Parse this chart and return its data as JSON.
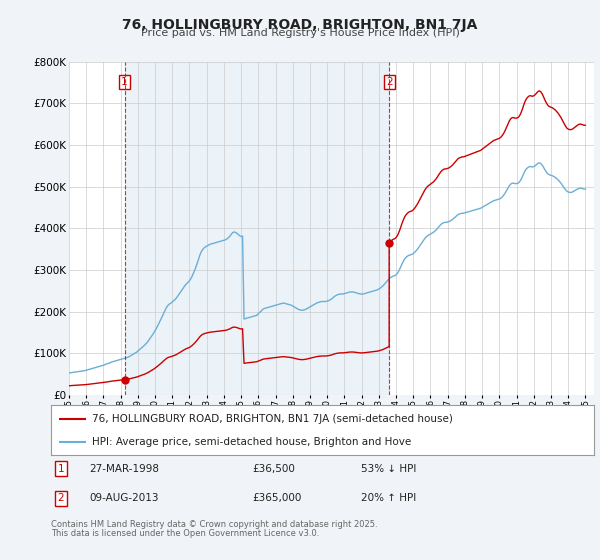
{
  "title": "76, HOLLINGBURY ROAD, BRIGHTON, BN1 7JA",
  "subtitle": "Price paid vs. HM Land Registry's House Price Index (HPI)",
  "legend_line1": "76, HOLLINGBURY ROAD, BRIGHTON, BN1 7JA (semi-detached house)",
  "legend_line2": "HPI: Average price, semi-detached house, Brighton and Hove",
  "footer1": "Contains HM Land Registry data © Crown copyright and database right 2025.",
  "footer2": "This data is licensed under the Open Government Licence v3.0.",
  "sale1_date": "27-MAR-1998",
  "sale1_price": "£36,500",
  "sale1_hpi": "53% ↓ HPI",
  "sale2_date": "09-AUG-2013",
  "sale2_price": "£365,000",
  "sale2_hpi": "20% ↑ HPI",
  "sale1_x": 1998.23,
  "sale1_y": 36500,
  "sale2_x": 2013.6,
  "sale2_y": 365000,
  "hpi_color": "#6baed6",
  "hpi_fill_color": "#ddeeff",
  "price_color": "#cc0000",
  "background_color": "#f0f4f8",
  "plot_background": "#ffffff",
  "grid_color": "#cccccc",
  "shade_color": "#deeaf4",
  "ylim": [
    0,
    800000
  ],
  "xlim": [
    1995,
    2025.5
  ],
  "hpi_x": [
    1995.0,
    1995.083,
    1995.167,
    1995.25,
    1995.333,
    1995.417,
    1995.5,
    1995.583,
    1995.667,
    1995.75,
    1995.833,
    1995.917,
    1996.0,
    1996.083,
    1996.167,
    1996.25,
    1996.333,
    1996.417,
    1996.5,
    1996.583,
    1996.667,
    1996.75,
    1996.833,
    1996.917,
    1997.0,
    1997.083,
    1997.167,
    1997.25,
    1997.333,
    1997.417,
    1997.5,
    1997.583,
    1997.667,
    1997.75,
    1997.833,
    1997.917,
    1998.0,
    1998.083,
    1998.167,
    1998.25,
    1998.333,
    1998.417,
    1998.5,
    1998.583,
    1998.667,
    1998.75,
    1998.833,
    1998.917,
    1999.0,
    1999.083,
    1999.167,
    1999.25,
    1999.333,
    1999.417,
    1999.5,
    1999.583,
    1999.667,
    1999.75,
    1999.833,
    1999.917,
    2000.0,
    2000.083,
    2000.167,
    2000.25,
    2000.333,
    2000.417,
    2000.5,
    2000.583,
    2000.667,
    2000.75,
    2000.833,
    2000.917,
    2001.0,
    2001.083,
    2001.167,
    2001.25,
    2001.333,
    2001.417,
    2001.5,
    2001.583,
    2001.667,
    2001.75,
    2001.833,
    2001.917,
    2002.0,
    2002.083,
    2002.167,
    2002.25,
    2002.333,
    2002.417,
    2002.5,
    2002.583,
    2002.667,
    2002.75,
    2002.833,
    2002.917,
    2003.0,
    2003.083,
    2003.167,
    2003.25,
    2003.333,
    2003.417,
    2003.5,
    2003.583,
    2003.667,
    2003.75,
    2003.833,
    2003.917,
    2004.0,
    2004.083,
    2004.167,
    2004.25,
    2004.333,
    2004.417,
    2004.5,
    2004.583,
    2004.667,
    2004.75,
    2004.833,
    2004.917,
    2005.0,
    2005.083,
    2005.167,
    2005.25,
    2005.333,
    2005.417,
    2005.5,
    2005.583,
    2005.667,
    2005.75,
    2005.833,
    2005.917,
    2006.0,
    2006.083,
    2006.167,
    2006.25,
    2006.333,
    2006.417,
    2006.5,
    2006.583,
    2006.667,
    2006.75,
    2006.833,
    2006.917,
    2007.0,
    2007.083,
    2007.167,
    2007.25,
    2007.333,
    2007.417,
    2007.5,
    2007.583,
    2007.667,
    2007.75,
    2007.833,
    2007.917,
    2008.0,
    2008.083,
    2008.167,
    2008.25,
    2008.333,
    2008.417,
    2008.5,
    2008.583,
    2008.667,
    2008.75,
    2008.833,
    2008.917,
    2009.0,
    2009.083,
    2009.167,
    2009.25,
    2009.333,
    2009.417,
    2009.5,
    2009.583,
    2009.667,
    2009.75,
    2009.833,
    2009.917,
    2010.0,
    2010.083,
    2010.167,
    2010.25,
    2010.333,
    2010.417,
    2010.5,
    2010.583,
    2010.667,
    2010.75,
    2010.833,
    2010.917,
    2011.0,
    2011.083,
    2011.167,
    2011.25,
    2011.333,
    2011.417,
    2011.5,
    2011.583,
    2011.667,
    2011.75,
    2011.833,
    2011.917,
    2012.0,
    2012.083,
    2012.167,
    2012.25,
    2012.333,
    2012.417,
    2012.5,
    2012.583,
    2012.667,
    2012.75,
    2012.833,
    2012.917,
    2013.0,
    2013.083,
    2013.167,
    2013.25,
    2013.333,
    2013.417,
    2013.5,
    2013.583,
    2013.667,
    2013.75,
    2013.833,
    2013.917,
    2014.0,
    2014.083,
    2014.167,
    2014.25,
    2014.333,
    2014.417,
    2014.5,
    2014.583,
    2014.667,
    2014.75,
    2014.833,
    2014.917,
    2015.0,
    2015.083,
    2015.167,
    2015.25,
    2015.333,
    2015.417,
    2015.5,
    2015.583,
    2015.667,
    2015.75,
    2015.833,
    2015.917,
    2016.0,
    2016.083,
    2016.167,
    2016.25,
    2016.333,
    2016.417,
    2016.5,
    2016.583,
    2016.667,
    2016.75,
    2016.833,
    2016.917,
    2017.0,
    2017.083,
    2017.167,
    2017.25,
    2017.333,
    2017.417,
    2017.5,
    2017.583,
    2017.667,
    2017.75,
    2017.833,
    2017.917,
    2018.0,
    2018.083,
    2018.167,
    2018.25,
    2018.333,
    2018.417,
    2018.5,
    2018.583,
    2018.667,
    2018.75,
    2018.833,
    2018.917,
    2019.0,
    2019.083,
    2019.167,
    2019.25,
    2019.333,
    2019.417,
    2019.5,
    2019.583,
    2019.667,
    2019.75,
    2019.833,
    2019.917,
    2020.0,
    2020.083,
    2020.167,
    2020.25,
    2020.333,
    2020.417,
    2020.5,
    2020.583,
    2020.667,
    2020.75,
    2020.833,
    2020.917,
    2021.0,
    2021.083,
    2021.167,
    2021.25,
    2021.333,
    2021.417,
    2021.5,
    2021.583,
    2021.667,
    2021.75,
    2021.833,
    2021.917,
    2022.0,
    2022.083,
    2022.167,
    2022.25,
    2022.333,
    2022.417,
    2022.5,
    2022.583,
    2022.667,
    2022.75,
    2022.833,
    2022.917,
    2023.0,
    2023.083,
    2023.167,
    2023.25,
    2023.333,
    2023.417,
    2023.5,
    2023.583,
    2023.667,
    2023.75,
    2023.833,
    2023.917,
    2024.0,
    2024.083,
    2024.167,
    2024.25,
    2024.333,
    2024.417,
    2024.5,
    2024.583,
    2024.667,
    2024.75,
    2024.833,
    2024.917,
    2025.0
  ],
  "hpi_y": [
    52000,
    53000,
    53500,
    54000,
    54500,
    55000,
    55500,
    56000,
    56500,
    57000,
    57500,
    58000,
    59000,
    60000,
    61000,
    62000,
    63000,
    64000,
    65000,
    66000,
    67000,
    68000,
    69000,
    70000,
    71000,
    72500,
    74000,
    75000,
    76000,
    77500,
    79000,
    80000,
    81000,
    82000,
    83000,
    84000,
    85000,
    86000,
    87000,
    88000,
    89000,
    90000,
    92000,
    94000,
    96000,
    98000,
    100000,
    102000,
    105000,
    108000,
    111000,
    114000,
    117000,
    120000,
    124000,
    128000,
    133000,
    138000,
    143000,
    148000,
    154000,
    160000,
    167000,
    174000,
    181000,
    188000,
    196000,
    203000,
    210000,
    215000,
    218000,
    220000,
    223000,
    226000,
    229000,
    233000,
    238000,
    243000,
    248000,
    253000,
    258000,
    263000,
    267000,
    270000,
    274000,
    279000,
    286000,
    294000,
    302000,
    312000,
    322000,
    333000,
    342000,
    348000,
    352000,
    355000,
    357000,
    359000,
    361000,
    362000,
    363000,
    364000,
    365000,
    366000,
    367000,
    368000,
    369000,
    370000,
    371000,
    372000,
    374000,
    377000,
    380000,
    385000,
    389000,
    391000,
    390000,
    388000,
    385000,
    382000,
    380000,
    381000,
    182000,
    183000,
    184000,
    185000,
    186000,
    187000,
    188000,
    189000,
    190000,
    191000,
    195000,
    198000,
    201000,
    205000,
    207000,
    208000,
    209000,
    210000,
    211000,
    212000,
    213000,
    214000,
    215000,
    216000,
    217000,
    218000,
    219000,
    220000,
    220000,
    219000,
    218000,
    217000,
    216000,
    215000,
    213000,
    211000,
    209000,
    207000,
    205000,
    204000,
    203000,
    203000,
    204000,
    205000,
    207000,
    209000,
    211000,
    213000,
    215000,
    217000,
    219000,
    221000,
    222000,
    223000,
    224000,
    224000,
    224000,
    224000,
    225000,
    226000,
    228000,
    230000,
    233000,
    236000,
    238000,
    240000,
    241000,
    242000,
    242000,
    242000,
    243000,
    244000,
    245000,
    246000,
    247000,
    247000,
    247000,
    246000,
    245000,
    244000,
    243000,
    242000,
    242000,
    242000,
    243000,
    244000,
    245000,
    246000,
    247000,
    248000,
    249000,
    250000,
    251000,
    252000,
    254000,
    256000,
    259000,
    262000,
    266000,
    270000,
    274000,
    278000,
    281000,
    283000,
    285000,
    286000,
    288000,
    292000,
    298000,
    305000,
    313000,
    320000,
    326000,
    330000,
    333000,
    335000,
    336000,
    337000,
    339000,
    342000,
    346000,
    350000,
    355000,
    360000,
    365000,
    370000,
    375000,
    379000,
    382000,
    384000,
    386000,
    388000,
    390000,
    393000,
    396000,
    400000,
    404000,
    408000,
    411000,
    413000,
    414000,
    414000,
    415000,
    416000,
    418000,
    420000,
    423000,
    426000,
    429000,
    432000,
    434000,
    435000,
    436000,
    436000,
    437000,
    438000,
    439000,
    440000,
    441000,
    442000,
    443000,
    444000,
    445000,
    446000,
    447000,
    448000,
    450000,
    452000,
    454000,
    456000,
    458000,
    460000,
    462000,
    464000,
    466000,
    467000,
    468000,
    469000,
    470000,
    472000,
    475000,
    479000,
    484000,
    490000,
    496000,
    502000,
    506000,
    508000,
    508000,
    507000,
    507000,
    508000,
    511000,
    516000,
    523000,
    531000,
    538000,
    543000,
    546000,
    548000,
    548000,
    547000,
    548000,
    550000,
    553000,
    556000,
    557000,
    555000,
    551000,
    545000,
    539000,
    534000,
    530000,
    528000,
    527000,
    526000,
    524000,
    522000,
    519000,
    516000,
    512000,
    508000,
    503000,
    498000,
    493000,
    489000,
    487000,
    486000,
    486000,
    487000,
    489000,
    491000,
    493000,
    495000,
    496000,
    496000,
    495000,
    494000,
    494000
  ]
}
